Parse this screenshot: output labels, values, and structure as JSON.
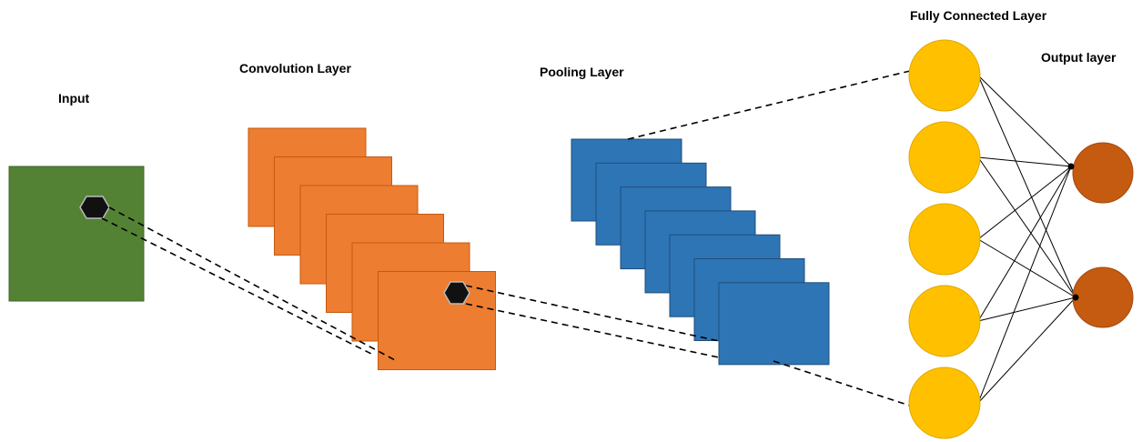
{
  "labels": {
    "input": "Input",
    "convolution": "Convolution Layer",
    "pooling": "Pooling Layer",
    "fully_connected": "Fully Connected Layer",
    "output": "Output layer"
  },
  "colors": {
    "input_fill": "#548235",
    "input_stroke": "#41672a",
    "conv_fill": "#ed7d31",
    "conv_stroke": "#c55a11",
    "pool_fill": "#2e75b6",
    "pool_stroke": "#1f4e79",
    "fc_fill": "#ffc000",
    "fc_stroke": "#e0a800",
    "output_fill": "#c55a11",
    "output_stroke": "#a34a0e",
    "kernel_fill": "#111111",
    "kernel_stroke": "#bbbbbb",
    "line": "#000000"
  },
  "structure": {
    "conv_maps": 6,
    "pool_maps": 7,
    "fc_neurons": 5,
    "output_neurons": 2
  }
}
